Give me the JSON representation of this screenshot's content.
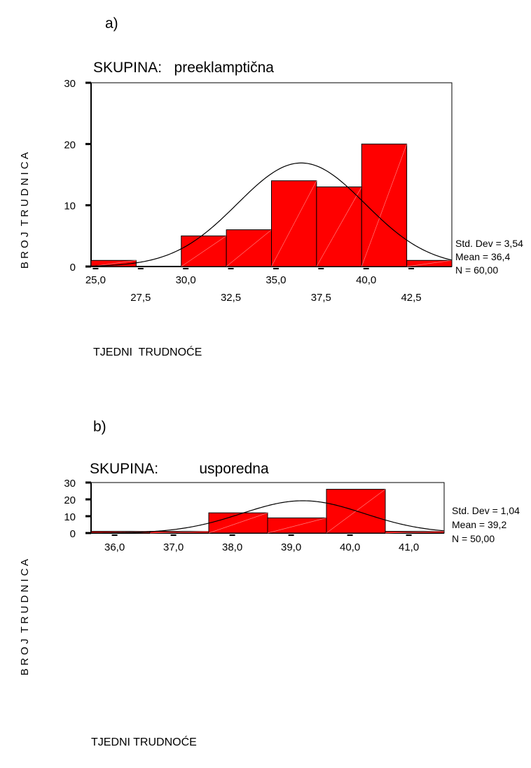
{
  "chart_data": [
    {
      "type": "bar",
      "panel_label": "a)",
      "title": "SKUPINA:   preeklamptična",
      "xlabel": "TJEDNI  TRUDNOĆE",
      "ylabel": "B R O J  T R U D N I C A",
      "ylim": [
        0,
        30
      ],
      "yticks": [
        "0",
        "10",
        "20",
        "30"
      ],
      "xlim": [
        24.75,
        44.75
      ],
      "xticks": [
        {
          "value": 25.0,
          "label": "25,0",
          "row": 1
        },
        {
          "value": 27.5,
          "label": "27,5",
          "row": 2
        },
        {
          "value": 30.0,
          "label": "30,0",
          "row": 1
        },
        {
          "value": 32.5,
          "label": "32,5",
          "row": 2
        },
        {
          "value": 35.0,
          "label": "35,0",
          "row": 1
        },
        {
          "value": 37.5,
          "label": "37,5",
          "row": 2
        },
        {
          "value": 40.0,
          "label": "40,0",
          "row": 1
        },
        {
          "value": 42.5,
          "label": "42,5",
          "row": 2
        }
      ],
      "bins": [
        {
          "x0": 24.75,
          "x1": 27.25,
          "count": 1
        },
        {
          "x0": 27.25,
          "x1": 29.75,
          "count": 0
        },
        {
          "x0": 29.75,
          "x1": 32.25,
          "count": 5
        },
        {
          "x0": 32.25,
          "x1": 34.75,
          "count": 6
        },
        {
          "x0": 34.75,
          "x1": 37.25,
          "count": 14
        },
        {
          "x0": 37.25,
          "x1": 39.75,
          "count": 13
        },
        {
          "x0": 39.75,
          "x1": 42.25,
          "count": 20
        },
        {
          "x0": 42.25,
          "x1": 44.75,
          "count": 1
        }
      ],
      "stats": {
        "std_dev": 3.54,
        "mean": 36.4,
        "n": 60,
        "bin_width": 2.5
      },
      "stats_lines": [
        "Std. Dev = 3,54",
        "Mean = 36,4",
        "N = 60,00"
      ],
      "bar_color": "#ff0000",
      "grid": false
    },
    {
      "type": "bar",
      "panel_label": "b)",
      "title": "SKUPINA:          usporedna",
      "xlabel": "TJEDNI TRUDNOĆE",
      "ylabel": "B R O J  T R U D N I C A",
      "ylim": [
        0,
        30
      ],
      "yticks": [
        "0",
        "10",
        "20",
        "30"
      ],
      "xlim": [
        35.6,
        41.6
      ],
      "xticks": [
        {
          "value": 36.0,
          "label": "36,0",
          "row": 1
        },
        {
          "value": 37.0,
          "label": "37,0",
          "row": 1
        },
        {
          "value": 38.0,
          "label": "38,0",
          "row": 1
        },
        {
          "value": 39.0,
          "label": "39,0",
          "row": 1
        },
        {
          "value": 40.0,
          "label": "40,0",
          "row": 1
        },
        {
          "value": 41.0,
          "label": "41,0",
          "row": 1
        }
      ],
      "bins": [
        {
          "x0": 35.6,
          "x1": 36.6,
          "count": 1
        },
        {
          "x0": 36.6,
          "x1": 37.6,
          "count": 1
        },
        {
          "x0": 37.6,
          "x1": 38.6,
          "count": 12
        },
        {
          "x0": 38.6,
          "x1": 39.6,
          "count": 9
        },
        {
          "x0": 39.6,
          "x1": 40.6,
          "count": 26
        },
        {
          "x0": 40.6,
          "x1": 41.6,
          "count": 1
        }
      ],
      "stats": {
        "std_dev": 1.04,
        "mean": 39.2,
        "n": 50,
        "bin_width": 1.0
      },
      "stats_lines": [
        "Std. Dev = 1,04",
        "Mean = 39,2",
        "N = 50,00"
      ],
      "bar_color": "#ff0000",
      "grid": false
    }
  ]
}
